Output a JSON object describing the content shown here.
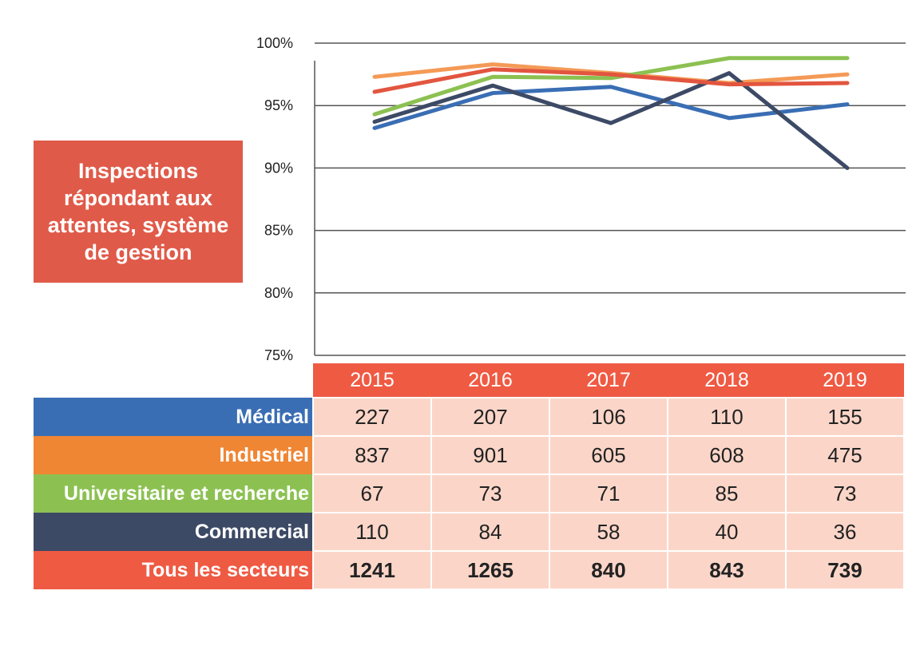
{
  "title": "Inspections répondant aux attentes, système de gestion",
  "colors": {
    "title_bg": "#e05a49",
    "header_bg": "#ef5a43",
    "cell_bg": "#fbd6c8",
    "grid": "#555555"
  },
  "table": {
    "rows": [
      {
        "label": "Médical",
        "color": "#3a6eb4",
        "values": [
          "227",
          "207",
          "106",
          "110",
          "155"
        ]
      },
      {
        "label": "Industriel",
        "color": "#ef8634",
        "values": [
          "837",
          "901",
          "605",
          "608",
          "475"
        ]
      },
      {
        "label": "Universitaire et recherche",
        "color": "#8cc152",
        "values": [
          "67",
          "73",
          "71",
          "85",
          "73"
        ]
      },
      {
        "label": "Commercial",
        "color": "#3d4a66",
        "values": [
          "110",
          "84",
          "58",
          "40",
          "36"
        ]
      },
      {
        "label": "Tous les secteurs",
        "color": "#ef5a43",
        "values": [
          "1241",
          "1265",
          "840",
          "843",
          "739"
        ],
        "bold": true
      }
    ]
  },
  "chart_data": {
    "type": "line",
    "x": [
      "2015",
      "2016",
      "2017",
      "2018",
      "2019"
    ],
    "ylim": [
      75,
      100
    ],
    "yticks": [
      75,
      80,
      85,
      90,
      95,
      100
    ],
    "ytick_labels": [
      "75%",
      "80%",
      "85%",
      "90%",
      "95%",
      "100%"
    ],
    "grid": true,
    "series": [
      {
        "name": "Médical",
        "color": "#3a6eb4",
        "values": [
          93.2,
          96.0,
          96.5,
          94.0,
          95.1
        ]
      },
      {
        "name": "Industriel",
        "color": "#f49a56",
        "values": [
          97.3,
          98.3,
          97.6,
          96.8,
          97.5
        ]
      },
      {
        "name": "Universitaire et recherche",
        "color": "#8cc152",
        "values": [
          94.3,
          97.3,
          97.2,
          98.8,
          98.8
        ]
      },
      {
        "name": "Commercial",
        "color": "#3d4a66",
        "values": [
          93.7,
          96.6,
          93.6,
          97.6,
          90.0
        ]
      },
      {
        "name": "Tous les secteurs",
        "color": "#e2553f",
        "values": [
          96.1,
          97.9,
          97.5,
          96.7,
          96.8
        ]
      }
    ]
  }
}
